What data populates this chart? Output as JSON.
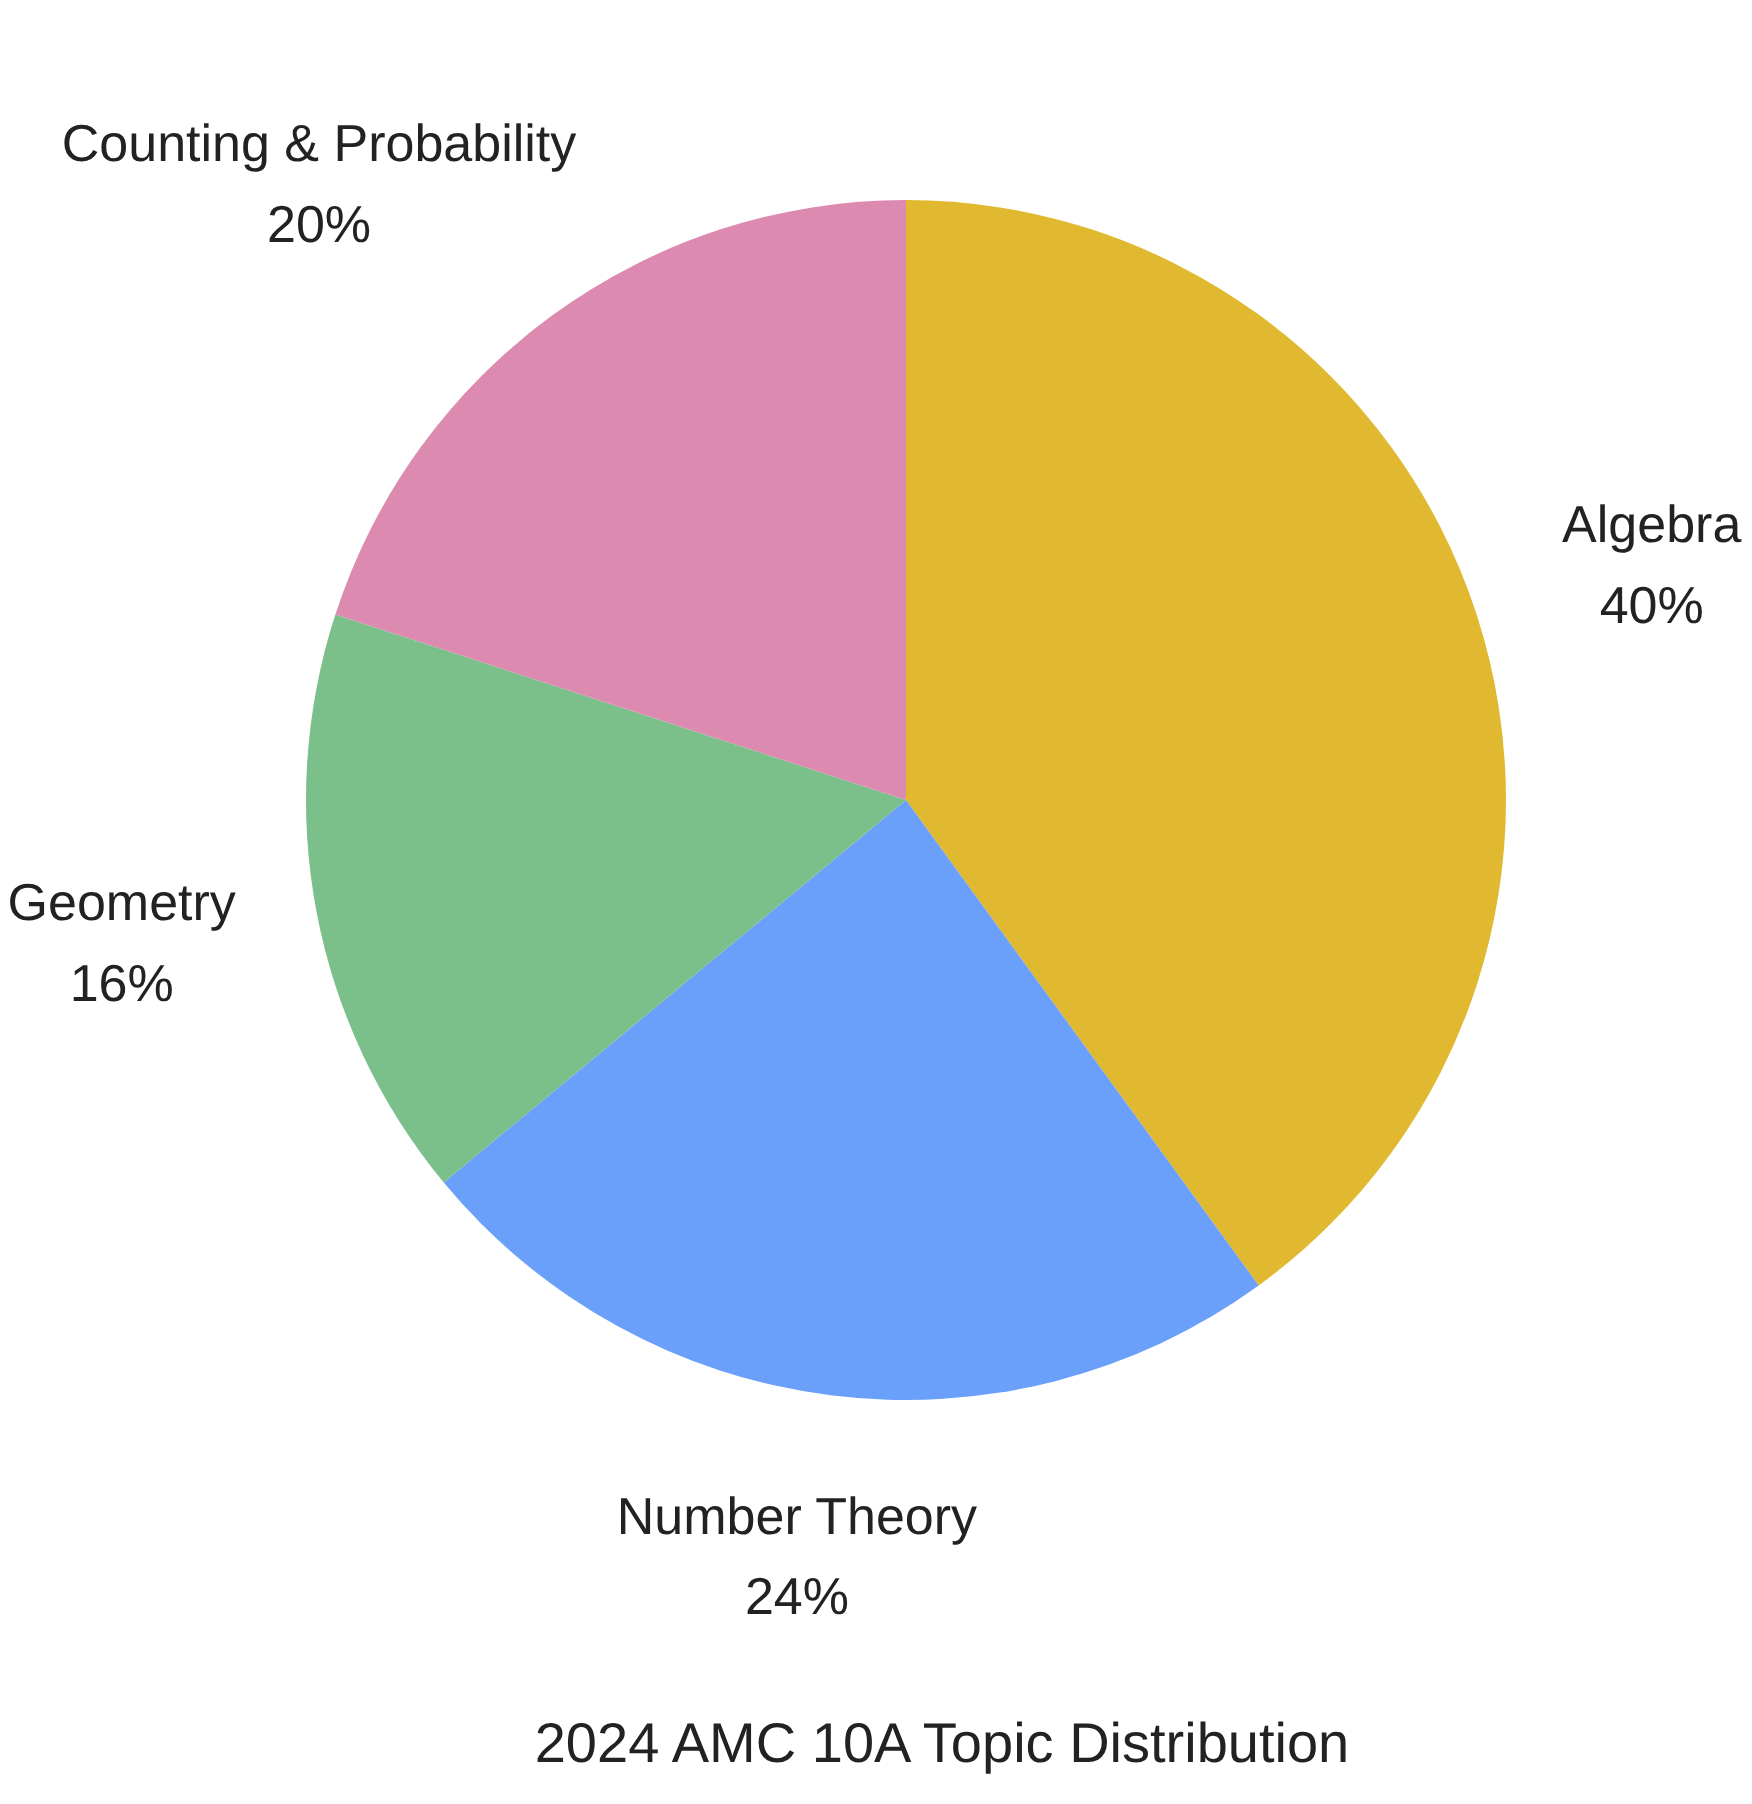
{
  "chart_data": {
    "type": "pie",
    "title": "2024 AMC 10A Topic Distribution",
    "categories": [
      "Algebra",
      "Number Theory",
      "Geometry",
      "Counting & Probability"
    ],
    "values": [
      40,
      24,
      16,
      20
    ],
    "value_labels": [
      "40%",
      "24%",
      "16%",
      "20%"
    ],
    "colors": [
      "#e1b931",
      "#6a9ffa",
      "#7bc08a",
      "#dc8aaf"
    ]
  }
}
